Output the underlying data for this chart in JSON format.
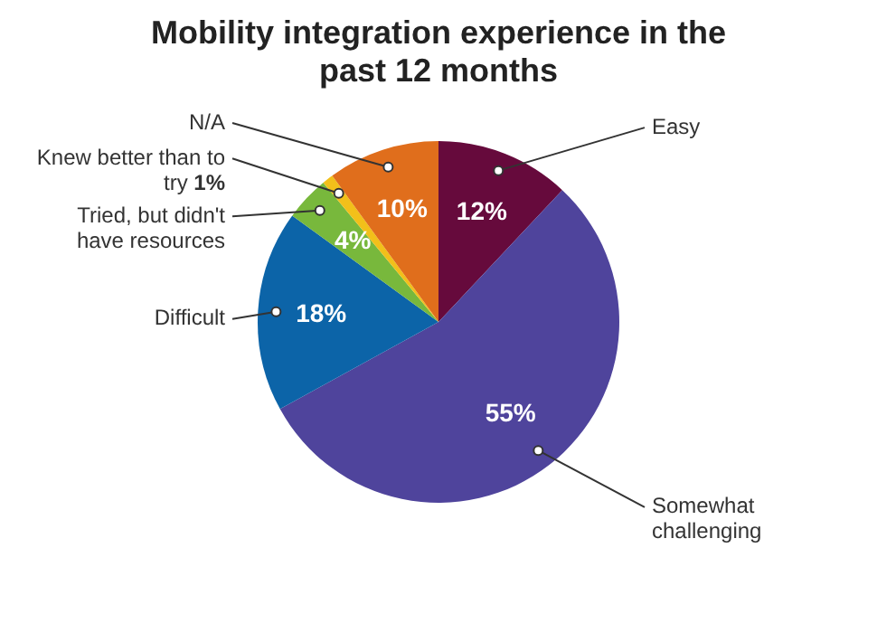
{
  "chart_data": {
    "type": "pie",
    "title": "Mobility integration experience in the past 12 months",
    "categories": [
      "Easy",
      "Somewhat challenging",
      "Difficult",
      "Tried, but didn't have resources",
      "Knew better than to try",
      "N/A"
    ],
    "values": [
      12,
      55,
      18,
      4,
      1,
      10
    ],
    "colors": [
      "#660a3c",
      "#4f449c",
      "#0c64a8",
      "#78b83c",
      "#f2c01a",
      "#e06e1c"
    ],
    "value_labels": [
      "12%",
      "55%",
      "18%",
      "4%",
      "1%",
      "10%"
    ],
    "legend": false
  }
}
